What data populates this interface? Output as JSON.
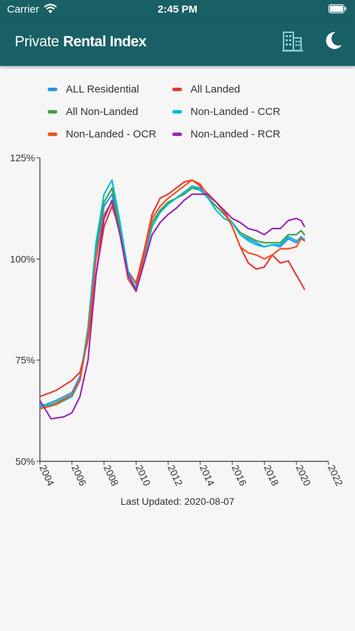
{
  "status_bar": {
    "carrier": "Carrier",
    "time": "2:45 PM"
  },
  "header": {
    "title_part1": "Private",
    "title_part2": "Rental Index",
    "background": "#195f66",
    "icons": [
      "buildings-icon",
      "moon-icon"
    ]
  },
  "footer": {
    "last_updated": "Last Updated: 2020-08-07"
  },
  "chart_data": {
    "type": "line",
    "xlim": [
      2004,
      2022
    ],
    "ylim": [
      50,
      125
    ],
    "x_ticks": [
      "2004",
      "2006",
      "2008",
      "2010",
      "2012",
      "2014",
      "2016",
      "2018",
      "2020",
      "2022"
    ],
    "y_ticks": [
      "50%",
      "75%",
      "100%",
      "125%"
    ],
    "grid": false,
    "legend_position": "top",
    "series": [
      {
        "name": "ALL Residential",
        "color": "#2196f3",
        "points": [
          [
            2004,
            63.5
          ],
          [
            2005,
            65
          ],
          [
            2006,
            67
          ],
          [
            2006.5,
            71
          ],
          [
            2007,
            82
          ],
          [
            2007.5,
            102
          ],
          [
            2008,
            113
          ],
          [
            2008.5,
            116
          ],
          [
            2009,
            107
          ],
          [
            2009.5,
            96
          ],
          [
            2010,
            93
          ],
          [
            2010.5,
            101
          ],
          [
            2011,
            109
          ],
          [
            2011.5,
            112
          ],
          [
            2012,
            114
          ],
          [
            2012.5,
            115
          ],
          [
            2013,
            116.5
          ],
          [
            2013.5,
            118
          ],
          [
            2014,
            117.5
          ],
          [
            2014.5,
            115
          ],
          [
            2015,
            113
          ],
          [
            2015.5,
            111
          ],
          [
            2016,
            109
          ],
          [
            2016.5,
            106
          ],
          [
            2017,
            105
          ],
          [
            2017.5,
            104
          ],
          [
            2018,
            103
          ],
          [
            2018.5,
            103.5
          ],
          [
            2019,
            103
          ],
          [
            2019.5,
            105
          ],
          [
            2020,
            104
          ],
          [
            2020.3,
            105.5
          ],
          [
            2020.5,
            104.5
          ]
        ]
      },
      {
        "name": "All Landed",
        "color": "#e53935",
        "points": [
          [
            2004,
            66
          ],
          [
            2005,
            67.5
          ],
          [
            2006,
            70
          ],
          [
            2006.5,
            72
          ],
          [
            2007,
            80
          ],
          [
            2007.5,
            96
          ],
          [
            2008,
            108
          ],
          [
            2008.5,
            113
          ],
          [
            2009,
            107
          ],
          [
            2009.5,
            97
          ],
          [
            2010,
            94
          ],
          [
            2010.5,
            102
          ],
          [
            2011,
            111
          ],
          [
            2011.5,
            115
          ],
          [
            2012,
            116
          ],
          [
            2012.5,
            117.5
          ],
          [
            2013,
            119
          ],
          [
            2013.5,
            119.5
          ],
          [
            2014,
            118
          ],
          [
            2014.5,
            116
          ],
          [
            2015,
            114
          ],
          [
            2015.5,
            112
          ],
          [
            2016,
            108
          ],
          [
            2016.5,
            103
          ],
          [
            2017,
            99
          ],
          [
            2017.5,
            97.5
          ],
          [
            2018,
            98
          ],
          [
            2018.5,
            101
          ],
          [
            2019,
            99
          ],
          [
            2019.5,
            99.5
          ],
          [
            2020,
            96
          ],
          [
            2020.3,
            94
          ],
          [
            2020.5,
            92.5
          ]
        ]
      },
      {
        "name": "All Non-Landed",
        "color": "#43a047",
        "points": [
          [
            2004,
            63
          ],
          [
            2005,
            64.5
          ],
          [
            2006,
            66.5
          ],
          [
            2006.5,
            70
          ],
          [
            2007,
            82
          ],
          [
            2007.5,
            103
          ],
          [
            2008,
            114
          ],
          [
            2008.5,
            117.5
          ],
          [
            2009,
            107
          ],
          [
            2009.5,
            96
          ],
          [
            2010,
            92.5
          ],
          [
            2010.5,
            101
          ],
          [
            2011,
            109
          ],
          [
            2011.5,
            112
          ],
          [
            2012,
            114
          ],
          [
            2012.5,
            115
          ],
          [
            2013,
            116
          ],
          [
            2013.5,
            117.5
          ],
          [
            2014,
            117
          ],
          [
            2014.5,
            115
          ],
          [
            2015,
            113
          ],
          [
            2015.5,
            111
          ],
          [
            2016,
            109
          ],
          [
            2016.5,
            106.5
          ],
          [
            2017,
            105.5
          ],
          [
            2017.5,
            104.5
          ],
          [
            2018,
            104
          ],
          [
            2018.5,
            104
          ],
          [
            2019,
            104
          ],
          [
            2019.5,
            106
          ],
          [
            2020,
            106
          ],
          [
            2020.3,
            107
          ],
          [
            2020.5,
            106
          ]
        ]
      },
      {
        "name": "Non-Landed - CCR",
        "color": "#00bcd4",
        "points": [
          [
            2004,
            64
          ],
          [
            2005,
            64
          ],
          [
            2006,
            66
          ],
          [
            2006.5,
            70
          ],
          [
            2007,
            83
          ],
          [
            2007.5,
            104
          ],
          [
            2008,
            116
          ],
          [
            2008.5,
            119.5
          ],
          [
            2009,
            109
          ],
          [
            2009.5,
            97
          ],
          [
            2010,
            92
          ],
          [
            2010.5,
            100
          ],
          [
            2011,
            108
          ],
          [
            2011.5,
            111.5
          ],
          [
            2012,
            113.5
          ],
          [
            2012.5,
            115
          ],
          [
            2013,
            116.5
          ],
          [
            2013.5,
            118
          ],
          [
            2014,
            117
          ],
          [
            2014.5,
            115
          ],
          [
            2015,
            112
          ],
          [
            2015.5,
            110
          ],
          [
            2016,
            109
          ],
          [
            2016.5,
            106
          ],
          [
            2017,
            104.5
          ],
          [
            2017.5,
            103.5
          ],
          [
            2018,
            103
          ],
          [
            2018.5,
            103.5
          ],
          [
            2019,
            103.5
          ],
          [
            2019.5,
            105.5
          ],
          [
            2020,
            104.5
          ],
          [
            2020.3,
            105
          ],
          [
            2020.5,
            105
          ]
        ]
      },
      {
        "name": "Non-Landed - OCR",
        "color": "#f4511e",
        "points": [
          [
            2004,
            63
          ],
          [
            2005,
            64
          ],
          [
            2006,
            66.5
          ],
          [
            2006.5,
            70
          ],
          [
            2007,
            81
          ],
          [
            2007.5,
            100
          ],
          [
            2008,
            111
          ],
          [
            2008.5,
            114
          ],
          [
            2009,
            106
          ],
          [
            2009.5,
            95
          ],
          [
            2010,
            92
          ],
          [
            2010.5,
            101
          ],
          [
            2011,
            110
          ],
          [
            2011.5,
            113
          ],
          [
            2012,
            115
          ],
          [
            2012.5,
            116.5
          ],
          [
            2013,
            118
          ],
          [
            2013.5,
            119.5
          ],
          [
            2014,
            118.5
          ],
          [
            2014.5,
            115.5
          ],
          [
            2015,
            114
          ],
          [
            2015.5,
            111.5
          ],
          [
            2016,
            108
          ],
          [
            2016.5,
            103
          ],
          [
            2017,
            101.5
          ],
          [
            2017.5,
            101
          ],
          [
            2018,
            100
          ],
          [
            2018.5,
            101
          ],
          [
            2019,
            102.5
          ],
          [
            2019.5,
            102.5
          ],
          [
            2020,
            103
          ],
          [
            2020.3,
            105
          ],
          [
            2020.5,
            104.5
          ]
        ]
      },
      {
        "name": "Non-Landed - RCR",
        "color": "#9c27b0",
        "points": [
          [
            2004,
            65
          ],
          [
            2004.7,
            60.5
          ],
          [
            2005.5,
            61
          ],
          [
            2006,
            62
          ],
          [
            2006.5,
            66
          ],
          [
            2007,
            75
          ],
          [
            2007.5,
            96
          ],
          [
            2008,
            110
          ],
          [
            2008.5,
            114.5
          ],
          [
            2009,
            106
          ],
          [
            2009.5,
            96
          ],
          [
            2010,
            92
          ],
          [
            2010.5,
            99
          ],
          [
            2011,
            106
          ],
          [
            2011.5,
            109
          ],
          [
            2012,
            111
          ],
          [
            2012.5,
            112.5
          ],
          [
            2013,
            114.5
          ],
          [
            2013.5,
            116
          ],
          [
            2014,
            116
          ],
          [
            2014.5,
            116
          ],
          [
            2015,
            114
          ],
          [
            2015.5,
            112
          ],
          [
            2016,
            110
          ],
          [
            2016.5,
            109
          ],
          [
            2017,
            107.5
          ],
          [
            2017.5,
            107
          ],
          [
            2018,
            106
          ],
          [
            2018.5,
            107.5
          ],
          [
            2019,
            107.5
          ],
          [
            2019.5,
            109.5
          ],
          [
            2020,
            110
          ],
          [
            2020.3,
            109.5
          ],
          [
            2020.5,
            108
          ]
        ]
      }
    ]
  }
}
